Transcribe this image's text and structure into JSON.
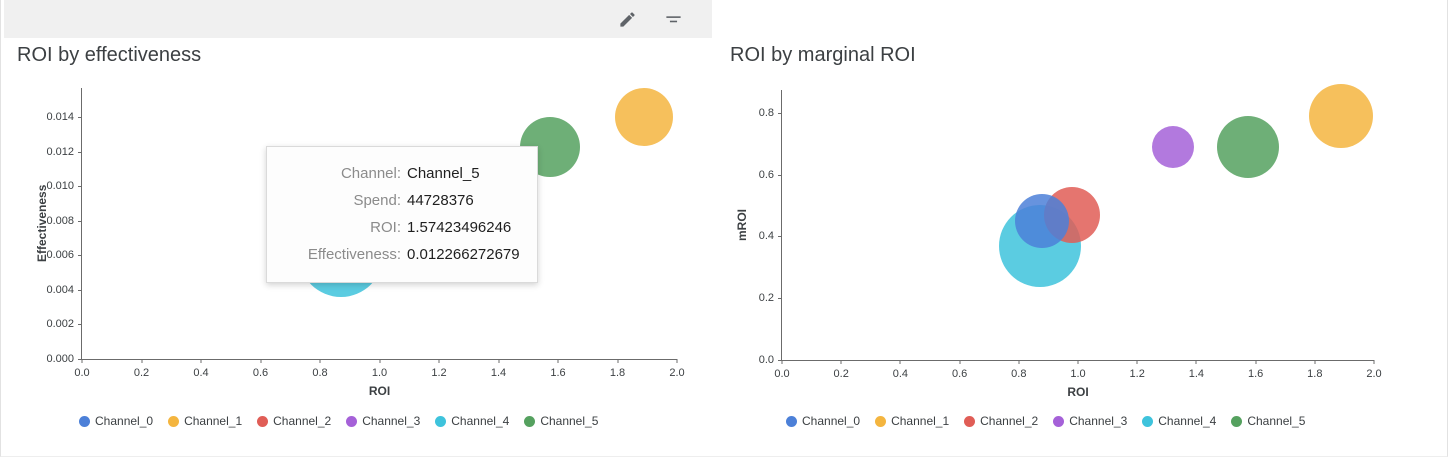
{
  "toolbar": {
    "buttons": [
      {
        "name": "edit",
        "icon": "pencil-icon"
      },
      {
        "name": "filter",
        "icon": "filter-icon"
      }
    ]
  },
  "tooltip": {
    "rows": [
      {
        "label": "Channel:",
        "value": "Channel_5"
      },
      {
        "label": "Spend:",
        "value": "44728376"
      },
      {
        "label": "ROI:",
        "value": "1.57423496246"
      },
      {
        "label": "Effectiveness:",
        "value": "0.012266272679"
      }
    ]
  },
  "chart_data": [
    {
      "type": "scatter",
      "title": "ROI by effectiveness",
      "xlabel": "ROI",
      "ylabel": "Effectiveness",
      "xlim": [
        0,
        2.0
      ],
      "ylim": [
        0,
        0.0157
      ],
      "xticks": [
        "0.0",
        "0.2",
        "0.4",
        "0.6",
        "0.8",
        "1.0",
        "1.2",
        "1.4",
        "1.6",
        "1.8",
        "2.0"
      ],
      "yticks": [
        "0.000",
        "0.002",
        "0.004",
        "0.006",
        "0.008",
        "0.010",
        "0.012",
        "0.014"
      ],
      "grid": false,
      "legend_position": "bottom",
      "series": [
        {
          "name": "Channel_0",
          "color": "#4c80d8",
          "point": {
            "x": 0.88,
            "y": 0.0065,
            "r": 30
          }
        },
        {
          "name": "Channel_1",
          "color": "#f4b53f",
          "point": {
            "x": 1.89,
            "y": 0.014,
            "r": 29
          }
        },
        {
          "name": "Channel_2",
          "color": "#e05d56",
          "point": null
        },
        {
          "name": "Channel_3",
          "color": "#a561d8",
          "point": null
        },
        {
          "name": "Channel_4",
          "color": "#3ec3dc",
          "point": {
            "x": 0.87,
            "y": 0.006,
            "r": 42
          }
        },
        {
          "name": "Channel_5",
          "color": "#55a15f",
          "point": {
            "x": 1.574,
            "y": 0.012266,
            "r": 30
          }
        }
      ]
    },
    {
      "type": "scatter",
      "title": "ROI by marginal ROI",
      "xlabel": "ROI",
      "ylabel": "mROI",
      "xlim": [
        0,
        2.0
      ],
      "ylim": [
        0,
        0.874
      ],
      "xticks": [
        "0.0",
        "0.2",
        "0.4",
        "0.6",
        "0.8",
        "1.0",
        "1.2",
        "1.4",
        "1.6",
        "1.8",
        "2.0"
      ],
      "yticks": [
        "0.0",
        "0.2",
        "0.4",
        "0.6",
        "0.8"
      ],
      "grid": false,
      "legend_position": "bottom",
      "series": [
        {
          "name": "Channel_0",
          "color": "#4c80d8",
          "point": {
            "x": 0.88,
            "y": 0.45,
            "r": 27
          }
        },
        {
          "name": "Channel_1",
          "color": "#f4b53f",
          "point": {
            "x": 1.89,
            "y": 0.79,
            "r": 32
          }
        },
        {
          "name": "Channel_2",
          "color": "#e05d56",
          "point": {
            "x": 0.98,
            "y": 0.47,
            "r": 28
          }
        },
        {
          "name": "Channel_3",
          "color": "#a561d8",
          "point": {
            "x": 1.32,
            "y": 0.69,
            "r": 21
          }
        },
        {
          "name": "Channel_4",
          "color": "#3ec3dc",
          "point": {
            "x": 0.87,
            "y": 0.37,
            "r": 41
          }
        },
        {
          "name": "Channel_5",
          "color": "#55a15f",
          "point": {
            "x": 1.574,
            "y": 0.69,
            "r": 31
          }
        }
      ]
    }
  ]
}
